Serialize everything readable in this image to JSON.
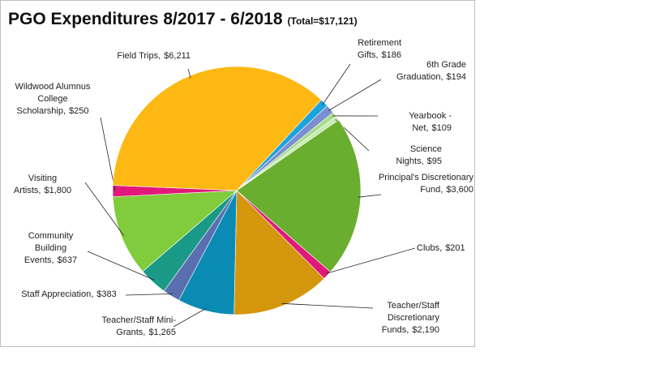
{
  "chart_data": {
    "type": "pie",
    "title": "PGO Expenditures 8/2017 - 6/2018",
    "subtitle": "(Total=$17,121)",
    "categories": [
      "Retirement Gifts,",
      "6th Grade Graduation,",
      "Yearbook - Net,",
      "Science Nights,",
      "Principal's Discretionary Fund,",
      "Clubs,",
      "Teacher/Staff Discretionary Funds,",
      "Teacher/Staff Mini-Grants,",
      "Staff Appreciation,",
      "Community Building Events,",
      "Visiting Artists,",
      "Wildwood Alumnus College Scholarship,",
      "Field Trips,"
    ],
    "values": [
      186,
      194,
      109,
      95,
      3600,
      201,
      2190,
      1265,
      383,
      637,
      1800,
      250,
      6211
    ],
    "value_labels": [
      "$186",
      "$194",
      "$109",
      "$95",
      "$3,600",
      "$201",
      "$2,190",
      "$1,265",
      "$383",
      "$637",
      "$1,800",
      "$250",
      "$6,211"
    ],
    "colors": [
      "#1ca3dc",
      "#7b8fd0",
      "#a6dc8c",
      "#c9ebb4",
      "#6aae2f",
      "#e0197a",
      "#d4960c",
      "#0a8bb3",
      "#5a6fb0",
      "#1a9a86",
      "#80cc3c",
      "#e2187a",
      "#fdb813"
    ]
  }
}
